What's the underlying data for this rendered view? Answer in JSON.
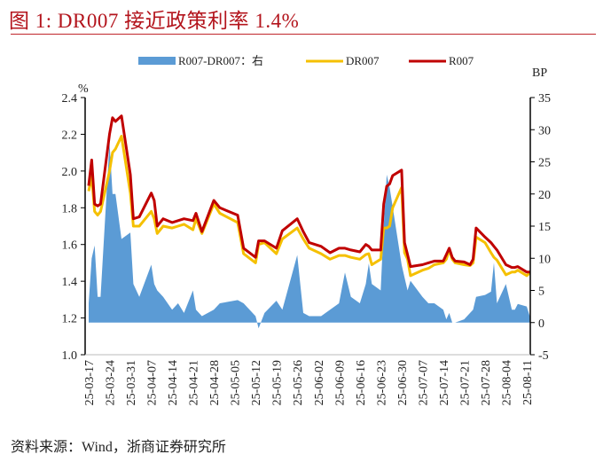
{
  "title": "图 1:    DR007 接近政策利率 1.4%",
  "footer": "资料来源：Wind，浙商证券研究所",
  "chart_data": {
    "type": "line",
    "title": "DR007 接近政策利率 1.4%",
    "left_axis": {
      "unit": "%",
      "ylim": [
        1.0,
        2.4
      ],
      "ticks": [
        "1.0",
        "1.2",
        "1.4",
        "1.6",
        "1.8",
        "2.0",
        "2.2",
        "2.4"
      ]
    },
    "right_axis": {
      "unit": "BP",
      "ylim": [
        -5,
        35
      ],
      "ticks": [
        "-5",
        "0",
        "5",
        "10",
        "15",
        "20",
        "25",
        "30",
        "35"
      ]
    },
    "x_ticks": [
      "25-03-17",
      "25-03-24",
      "25-03-31",
      "25-04-07",
      "25-04-14",
      "25-04-21",
      "25-04-28",
      "25-05-05",
      "25-05-12",
      "25-05-19",
      "25-05-26",
      "25-06-02",
      "25-06-09",
      "25-06-16",
      "25-06-23",
      "25-06-30",
      "25-07-07",
      "25-07-14",
      "25-07-21",
      "25-07-28",
      "25-08-04",
      "25-08-11"
    ],
    "grid": false,
    "legend_position": "top",
    "colors": {
      "spread": "#5b9bd5",
      "DR007": "#f5c000",
      "R007": "#c00000",
      "title": "#b3141c"
    },
    "x": [
      "2025-03-17",
      "2025-03-18",
      "2025-03-19",
      "2025-03-20",
      "2025-03-21",
      "2025-03-24",
      "2025-03-25",
      "2025-03-26",
      "2025-03-28",
      "2025-03-31",
      "2025-04-01",
      "2025-04-03",
      "2025-04-07",
      "2025-04-08",
      "2025-04-09",
      "2025-04-11",
      "2025-04-14",
      "2025-04-16",
      "2025-04-18",
      "2025-04-21",
      "2025-04-22",
      "2025-04-24",
      "2025-04-28",
      "2025-04-30",
      "2025-05-06",
      "2025-05-08",
      "2025-05-12",
      "2025-05-13",
      "2025-05-15",
      "2025-05-19",
      "2025-05-21",
      "2025-05-26",
      "2025-05-28",
      "2025-05-30",
      "2025-06-03",
      "2025-06-06",
      "2025-06-09",
      "2025-06-11",
      "2025-06-13",
      "2025-06-16",
      "2025-06-18",
      "2025-06-19",
      "2025-06-20",
      "2025-06-23",
      "2025-06-24",
      "2025-06-25",
      "2025-06-26",
      "2025-06-27",
      "2025-06-30",
      "2025-07-01",
      "2025-07-02",
      "2025-07-03",
      "2025-07-07",
      "2025-07-09",
      "2025-07-11",
      "2025-07-14",
      "2025-07-15",
      "2025-07-16",
      "2025-07-17",
      "2025-07-18",
      "2025-07-21",
      "2025-07-23",
      "2025-07-24",
      "2025-07-25",
      "2025-07-28",
      "2025-07-30",
      "2025-07-31",
      "2025-08-01",
      "2025-08-04",
      "2025-08-06",
      "2025-08-07",
      "2025-08-08",
      "2025-08-11",
      "2025-08-12"
    ],
    "series": [
      {
        "name": "R007-DR007：右",
        "axis": "right",
        "kind": "area",
        "values": [
          3,
          10,
          12,
          4,
          4,
          28,
          20,
          20,
          13,
          14,
          6,
          4,
          9,
          6,
          5,
          4,
          2,
          3,
          1.5,
          5,
          2,
          1,
          2,
          3,
          3.5,
          3,
          1,
          -0.9,
          1.5,
          3.4,
          2,
          10.5,
          1.5,
          1,
          1,
          2,
          3,
          7.8,
          4,
          3,
          6,
          9.2,
          6,
          5,
          15,
          23,
          21,
          18,
          9,
          7,
          5,
          6.5,
          4,
          3,
          3,
          2,
          0.5,
          1.5,
          0,
          0,
          0.5,
          1.5,
          2,
          4,
          4.3,
          4.8,
          9.3,
          3,
          6,
          2,
          2,
          2.9,
          2.5,
          1
        ]
      },
      {
        "name": "DR007",
        "axis": "left",
        "kind": "line",
        "values": [
          1.89,
          1.97,
          1.78,
          1.76,
          1.78,
          2.0,
          2.1,
          2.12,
          2.19,
          1.88,
          1.7,
          1.7,
          1.78,
          1.74,
          1.66,
          1.7,
          1.69,
          1.7,
          1.71,
          1.68,
          1.74,
          1.66,
          1.82,
          1.77,
          1.72,
          1.55,
          1.5,
          1.6,
          1.61,
          1.55,
          1.63,
          1.69,
          1.63,
          1.58,
          1.55,
          1.52,
          1.54,
          1.54,
          1.53,
          1.52,
          1.545,
          1.55,
          1.49,
          1.52,
          1.69,
          1.69,
          1.7,
          1.8,
          1.91,
          1.555,
          1.52,
          1.43,
          1.46,
          1.47,
          1.49,
          1.5,
          1.52,
          1.57,
          1.52,
          1.5,
          1.49,
          1.485,
          1.5,
          1.64,
          1.61,
          1.555,
          1.53,
          1.515,
          1.435,
          1.45,
          1.45,
          1.46,
          1.43,
          1.445
        ]
      },
      {
        "name": "R007",
        "axis": "left",
        "kind": "line",
        "values": [
          1.92,
          2.06,
          1.82,
          1.81,
          1.82,
          2.2,
          2.29,
          2.27,
          2.3,
          1.98,
          1.74,
          1.75,
          1.88,
          1.84,
          1.7,
          1.74,
          1.72,
          1.73,
          1.74,
          1.73,
          1.77,
          1.67,
          1.84,
          1.8,
          1.76,
          1.58,
          1.53,
          1.62,
          1.62,
          1.58,
          1.675,
          1.74,
          1.67,
          1.61,
          1.59,
          1.555,
          1.58,
          1.58,
          1.57,
          1.56,
          1.6,
          1.59,
          1.57,
          1.57,
          1.82,
          1.917,
          1.93,
          1.975,
          2.005,
          1.61,
          1.545,
          1.48,
          1.49,
          1.5,
          1.51,
          1.51,
          1.545,
          1.58,
          1.53,
          1.51,
          1.505,
          1.49,
          1.52,
          1.69,
          1.64,
          1.61,
          1.59,
          1.57,
          1.49,
          1.475,
          1.475,
          1.48,
          1.45,
          1.45
        ]
      }
    ]
  }
}
